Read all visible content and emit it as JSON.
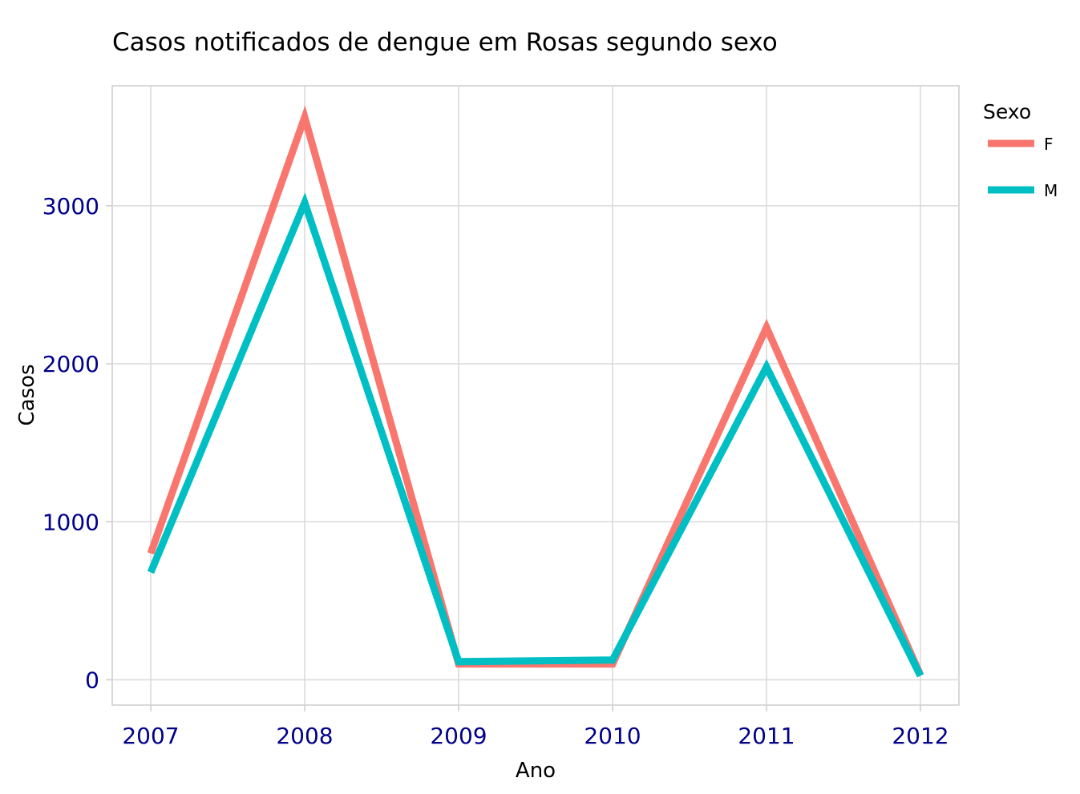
{
  "chart_data": {
    "type": "line",
    "title": "Casos notificados de dengue em Rosas segundo sexo",
    "xlabel": "Ano",
    "ylabel": "Casos",
    "x": [
      "2007",
      "2008",
      "2009",
      "2010",
      "2011",
      "2012"
    ],
    "y_ticks": [
      "0",
      "1000",
      "2000",
      "3000"
    ],
    "ylim": [
      -160,
      3760
    ],
    "grid": true,
    "legend": {
      "title": "Sexo",
      "position": "right"
    },
    "series": [
      {
        "name": "F",
        "color": "#F8766D",
        "values": [
          800,
          3560,
          100,
          100,
          2230,
          30
        ]
      },
      {
        "name": "M",
        "color": "#00BFC4",
        "values": [
          680,
          3020,
          115,
          125,
          1980,
          25
        ]
      }
    ]
  }
}
